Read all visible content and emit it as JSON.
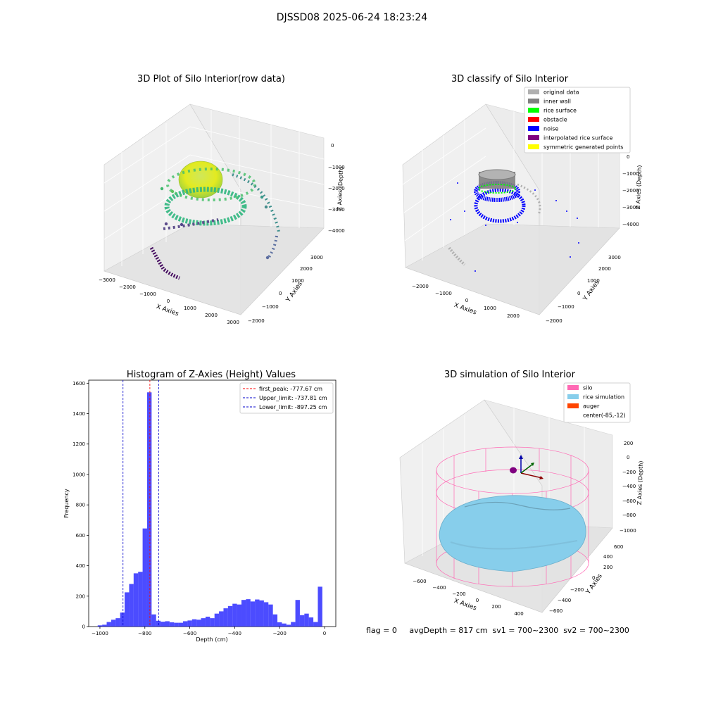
{
  "suptitle": "DJSSD08 2025-06-24 18:23:24",
  "footer": "flag = 0     avgDepth = 817 cm  sv1 = 700~2300  sv2 = 700~2300",
  "colors": {
    "histogram_bar": "#0000ff",
    "first_peak_line": "#ff0000",
    "limit_line": "#0000cc",
    "silo": "#ff69b4",
    "rice_simulation": "#87ceeb",
    "auger": "#ff4500",
    "grid_pane": "#f2f2f2"
  },
  "chart_data": [
    {
      "type": "scatter",
      "subtype": "3d",
      "title": "3D Plot of Silo Interior(row data)",
      "xlabel": "X Axies",
      "ylabel": "Y Axies",
      "zlabel": "Z Axies (Depth)",
      "x_ticks": [
        "−3000",
        "−2000",
        "−1000",
        "0",
        "1000",
        "2000",
        "3000"
      ],
      "y_ticks": [
        "−2000",
        "−1000",
        "0",
        "1000",
        "2000",
        "3000"
      ],
      "z_ticks": [
        "0",
        "−1000",
        "−2000",
        "−3000",
        "−4000"
      ],
      "colormap": "viridis"
    },
    {
      "type": "scatter",
      "subtype": "3d",
      "title": "3D classify of Silo Interior",
      "xlabel": "X Axies",
      "ylabel": "Y Axies",
      "zlabel": "Z Axies (Depth)",
      "x_ticks": [
        "−2000",
        "−1000",
        "0",
        "1000",
        "2000"
      ],
      "y_ticks": [
        "−2000",
        "−1000",
        "0",
        "1000",
        "2000",
        "3000"
      ],
      "z_ticks": [
        "0",
        "−1000",
        "−2000",
        "−3000",
        "−4000"
      ],
      "legend_position": "top-right",
      "legend": [
        {
          "label": "original data",
          "color": "#b0b0b0"
        },
        {
          "label": "inner wall",
          "color": "#808080"
        },
        {
          "label": "rice surface",
          "color": "#00ff00"
        },
        {
          "label": "obstacle",
          "color": "#ff0000"
        },
        {
          "label": "noise",
          "color": "#0000ff"
        },
        {
          "label": "interpolated rice surface",
          "color": "#800080"
        },
        {
          "label": "symmetric generated points",
          "color": "#ffff00"
        }
      ]
    },
    {
      "type": "bar",
      "subtype": "histogram",
      "title": "Histogram of Z-Axies (Height) Values",
      "xlabel": "Depth (cm)",
      "ylabel": "Frequency",
      "xlim": [
        -1050,
        50
      ],
      "ylim": [
        0,
        1620
      ],
      "x_ticks": [
        -1000,
        -800,
        -600,
        -400,
        -200,
        0
      ],
      "x_tick_labels": [
        "−1000",
        "−800",
        "−600",
        "−400",
        "−200",
        "0"
      ],
      "y_ticks": [
        0,
        200,
        400,
        600,
        800,
        1000,
        1200,
        1400,
        1600
      ],
      "bin_start": -1010,
      "bin_width": 20,
      "values": [
        8,
        12,
        30,
        45,
        55,
        92,
        225,
        280,
        350,
        360,
        645,
        1540,
        80,
        38,
        32,
        35,
        28,
        25,
        25,
        35,
        40,
        48,
        45,
        55,
        65,
        55,
        85,
        100,
        120,
        135,
        150,
        145,
        175,
        180,
        165,
        178,
        172,
        160,
        145,
        80,
        28,
        20,
        12,
        30,
        175,
        75,
        85,
        60,
        30,
        262
      ],
      "legend_position": "top-right",
      "reference_lines": [
        {
          "label": "first_peak: -777.67 cm",
          "x": -777.67,
          "color": "#ff0000"
        },
        {
          "label": "Upper_limit: -737.81 cm",
          "x": -737.81,
          "color": "#0000cc"
        },
        {
          "label": "Lower_limit: -897.25 cm",
          "x": -897.25,
          "color": "#0000cc"
        }
      ]
    },
    {
      "type": "surface",
      "subtype": "3d",
      "title": "3D simulation of Silo Interior",
      "xlabel": "X Axies",
      "ylabel": "Y Axies",
      "zlabel": "Z Axies (Depth)",
      "x_ticks": [
        "−600",
        "−400",
        "−200",
        "0",
        "200",
        "400"
      ],
      "y_ticks": [
        "−600",
        "−400",
        "−200",
        "0",
        "200",
        "400",
        "600"
      ],
      "z_ticks": [
        "200",
        "0",
        "−200",
        "−400",
        "−600",
        "−800",
        "−1000"
      ],
      "legend_position": "top-right",
      "legend": [
        {
          "label": "silo",
          "color": "#ff69b4"
        },
        {
          "label": "rice simulation",
          "color": "#87ceeb"
        },
        {
          "label": "auger",
          "color": "#ff4500"
        },
        {
          "label": "center(-85,-12)",
          "color": ""
        }
      ]
    }
  ]
}
